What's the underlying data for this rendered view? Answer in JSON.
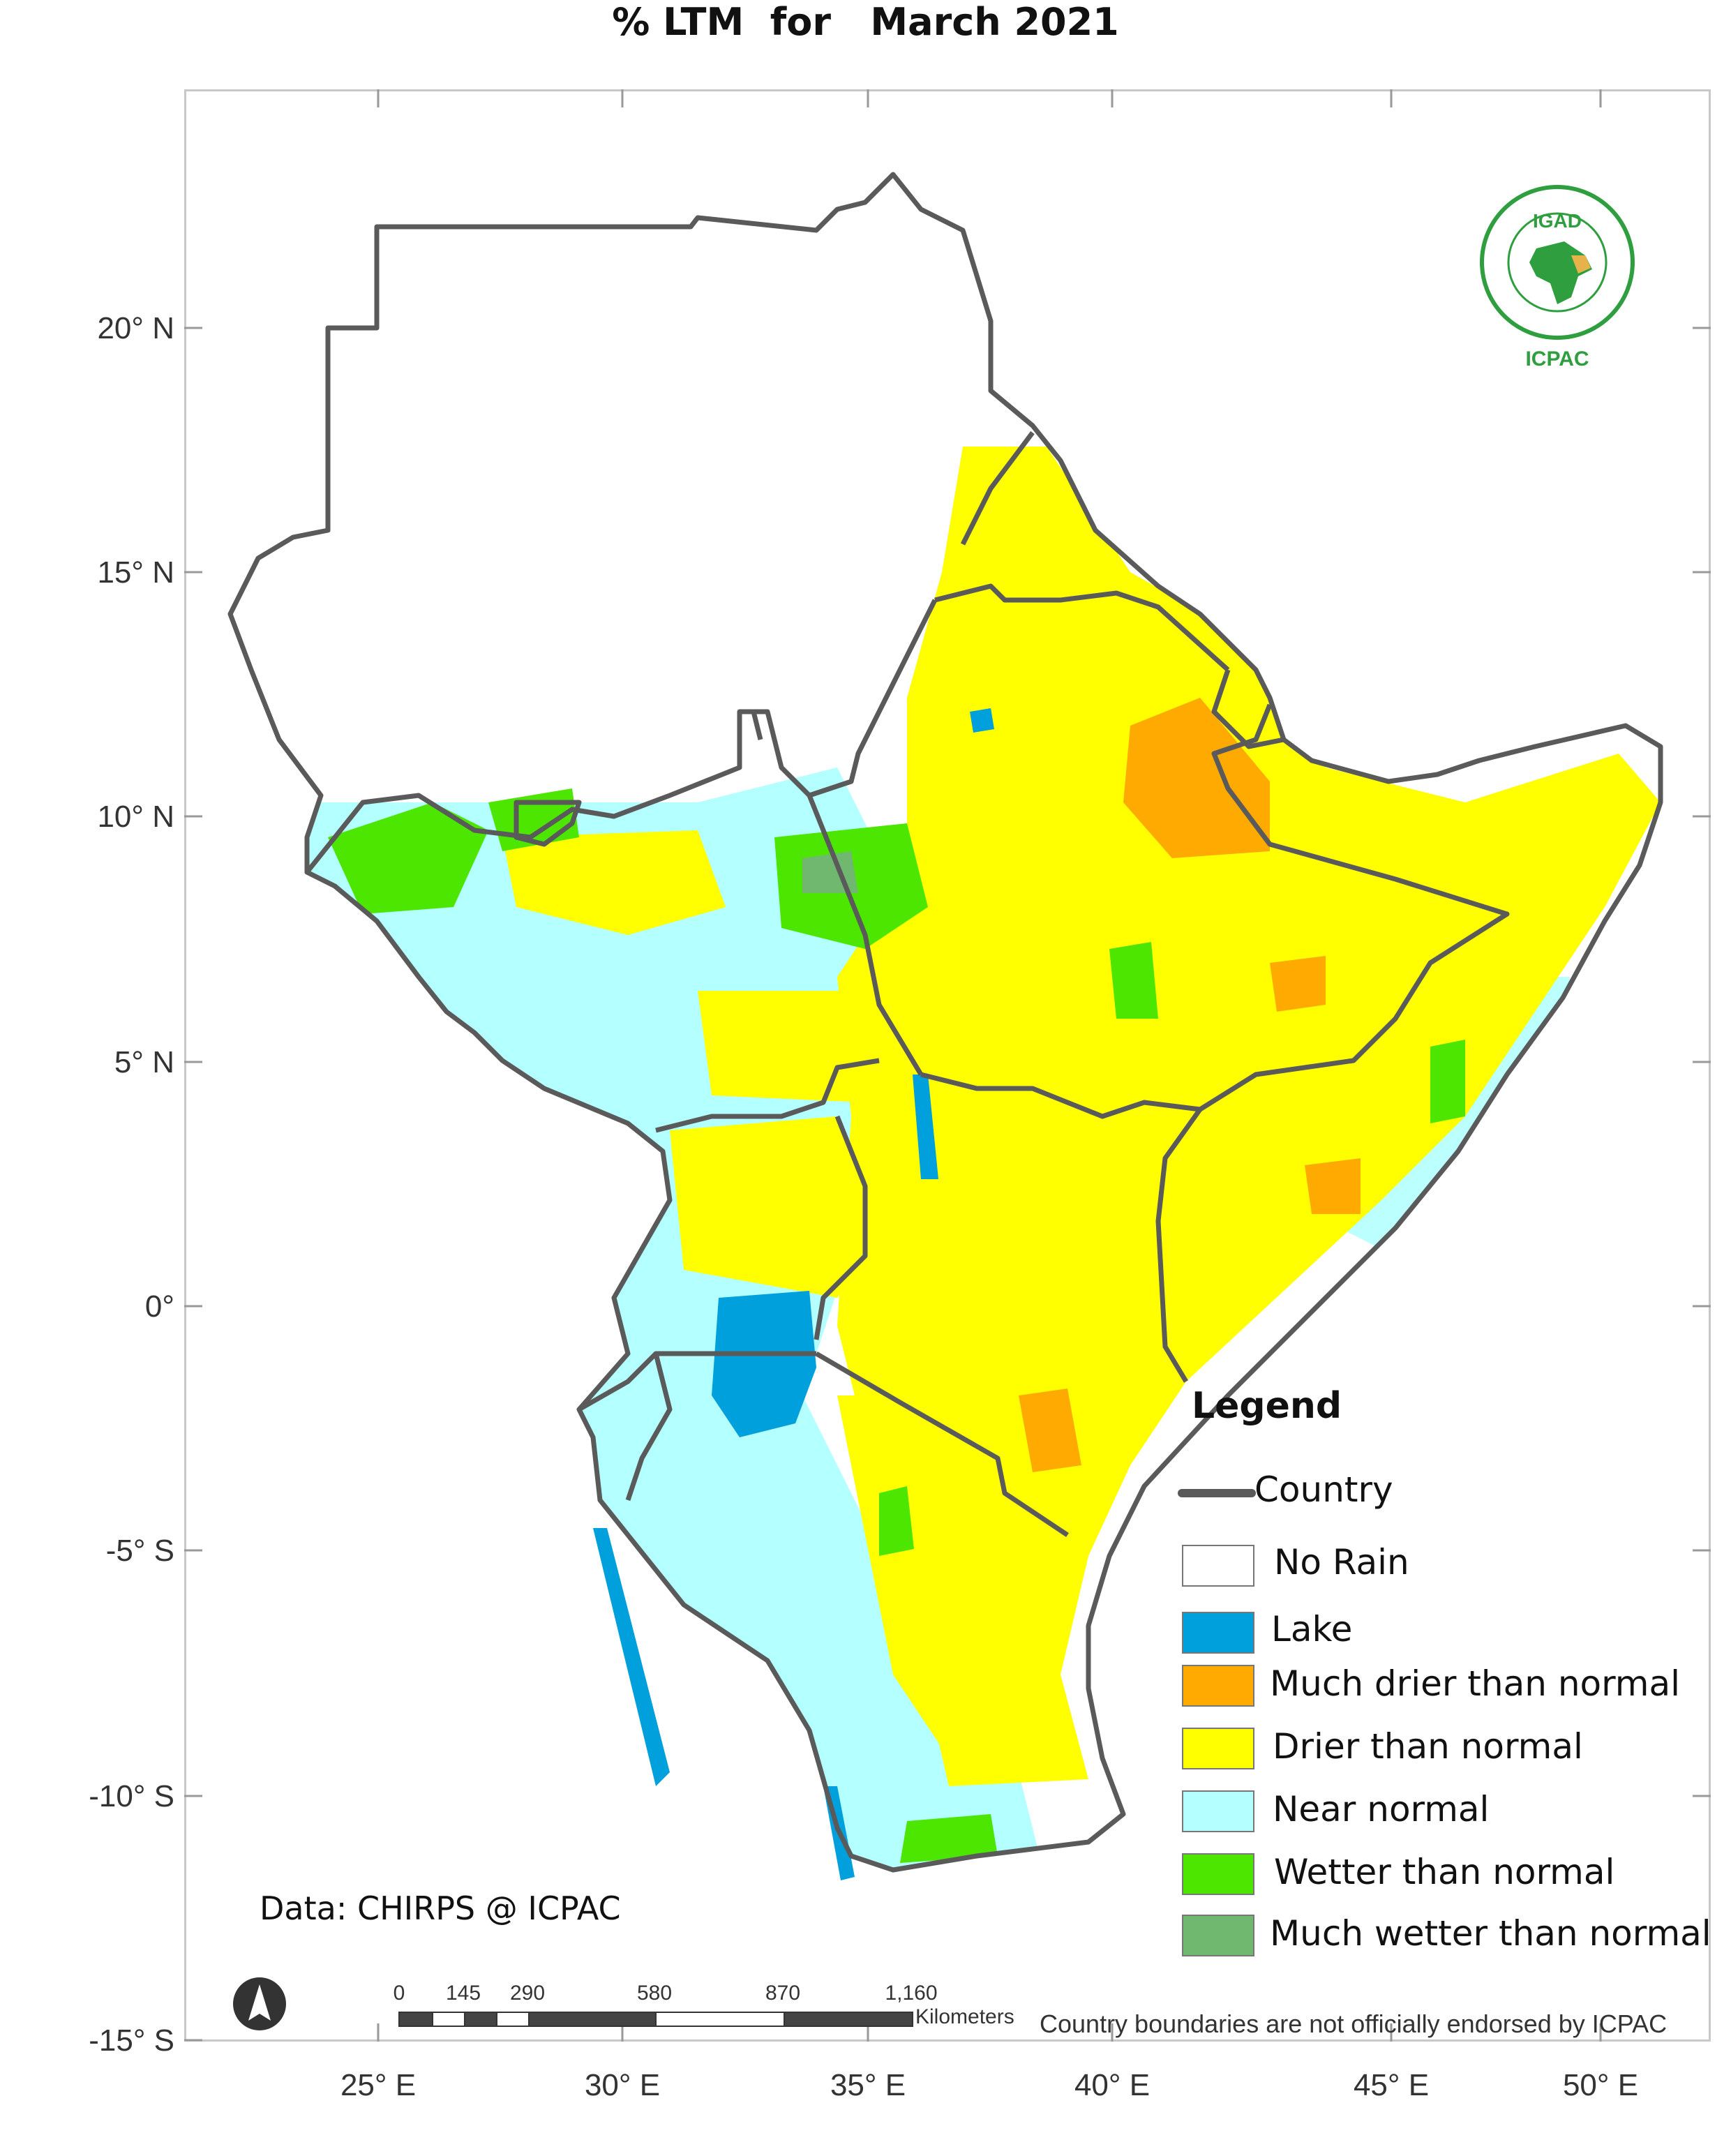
{
  "map": {
    "title": "% LTM  for   March 2021",
    "lat_labels": [
      "20° N",
      "15° N",
      "10° N",
      "5° N",
      "0°",
      "-5° S",
      "-10° S",
      "-15° S"
    ],
    "lon_labels": [
      "25° E",
      "30° E",
      "35° E",
      "40° E",
      "45° E",
      "50° E"
    ],
    "legend": {
      "title": "Legend",
      "country_label": "Country",
      "items": [
        {
          "label": "No Rain",
          "color": "#ffffff"
        },
        {
          "label": "Lake",
          "color": "#00a0dc"
        },
        {
          "label": "Much drier than normal",
          "color": "#ffaa00"
        },
        {
          "label": "Drier than normal",
          "color": "#ffff00"
        },
        {
          "label": "Near normal",
          "color": "#b4ffff"
        },
        {
          "label": "Wetter than normal",
          "color": "#4ce600"
        },
        {
          "label": "Much wetter than normal",
          "color": "#70b870"
        }
      ]
    },
    "credit": "Data: CHIRPS @ ICPAC",
    "disclaimer": "Country boundaries are not officially endorsed by ICPAC",
    "scale_bar": {
      "unit": "Kilometers",
      "ticks": [
        "0",
        "145",
        "290",
        "580",
        "870",
        "1,160"
      ]
    },
    "logo": {
      "top_text": "IGAD",
      "bottom_text": "ICPAC"
    },
    "colors": {
      "border": "#5a5a5a",
      "no_rain": "#ffffff",
      "lake": "#00a0dc",
      "much_drier": "#ffaa00",
      "drier": "#ffff00",
      "near_normal": "#b4ffff",
      "wetter": "#4ce600",
      "much_wetter": "#70b870"
    }
  }
}
